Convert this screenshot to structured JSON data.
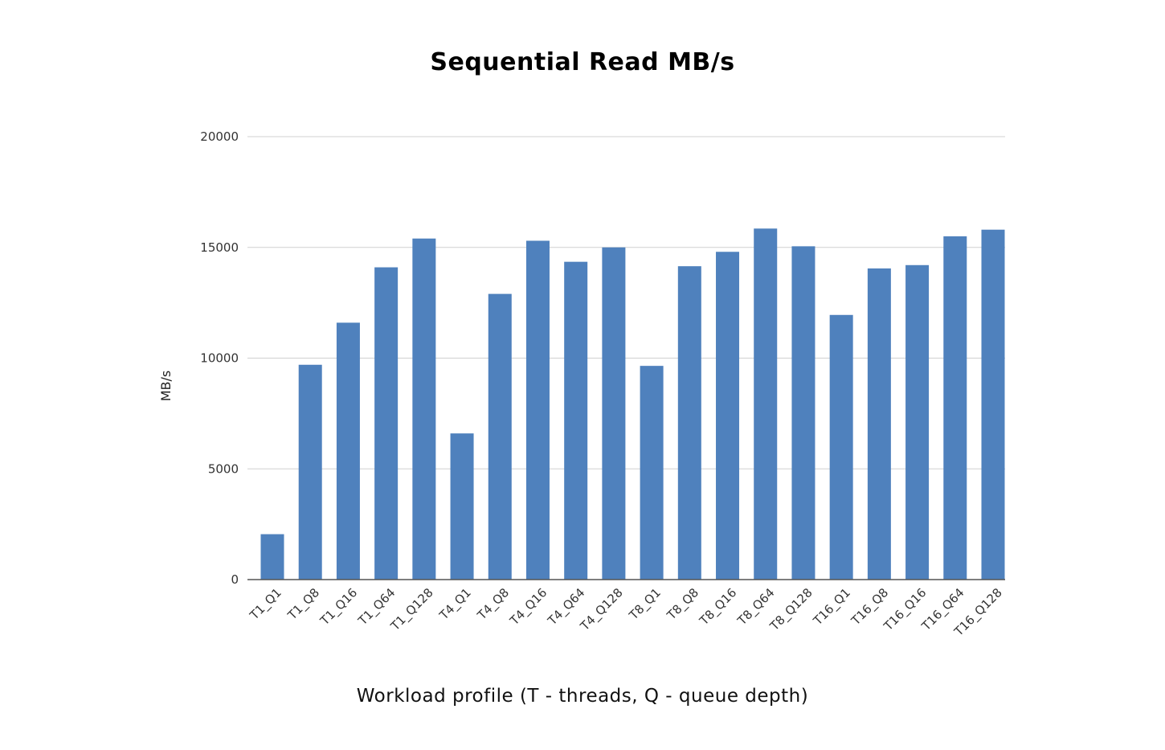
{
  "chart_data": {
    "type": "bar",
    "title": "Sequential Read MB/s",
    "xlabel": "Workload profile (T - threads, Q - queue depth)",
    "ylabel": "MB/s",
    "ylim": [
      0,
      20000
    ],
    "yticks": [
      0,
      5000,
      10000,
      15000,
      20000
    ],
    "grid": true,
    "bar_color": "#4f81bd",
    "categories": [
      "T1_Q1",
      "T1_Q8",
      "T1_Q16",
      "T1_Q64",
      "T1_Q128",
      "T4_Q1",
      "T4_Q8",
      "T4_Q16",
      "T4_Q64",
      "T4_Q128",
      "T8_Q1",
      "T8_Q8",
      "T8_Q16",
      "T8_Q64",
      "T8_Q128",
      "T16_Q1",
      "T16_Q8",
      "T16_Q16",
      "T16_Q64",
      "T16_Q128"
    ],
    "values": [
      2050,
      9700,
      11600,
      14100,
      15400,
      6600,
      12900,
      15300,
      14350,
      15000,
      9650,
      14150,
      14800,
      15850,
      15050,
      11950,
      14050,
      14200,
      15500,
      15800
    ]
  }
}
